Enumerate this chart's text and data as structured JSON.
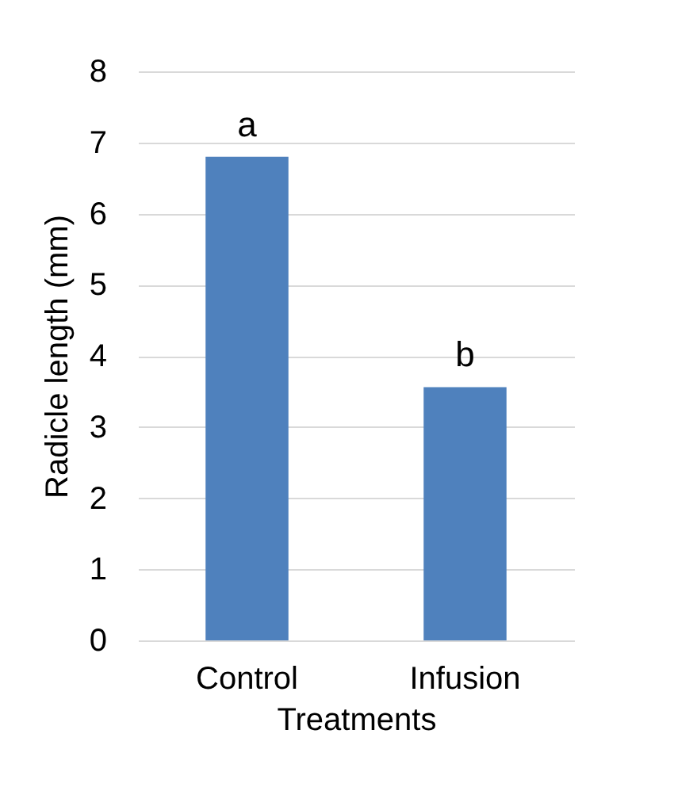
{
  "chart_data": {
    "type": "bar",
    "xlabel": "Treatments",
    "ylabel": "Radicle length (mm)",
    "categories": [
      "Control",
      "Infusion"
    ],
    "series": [
      {
        "color": "#4f81bd",
        "values": [
          6.8,
          3.56
        ]
      }
    ],
    "ylim": [
      0,
      8
    ],
    "yticks": [
      0,
      1,
      2,
      3,
      4,
      5,
      6,
      7,
      8
    ],
    "grid": "y",
    "annotations": [
      {
        "text": "a",
        "x": "Control",
        "y": 6.8
      },
      {
        "text": "b",
        "x": "Infusion",
        "y": 3.56
      }
    ]
  }
}
